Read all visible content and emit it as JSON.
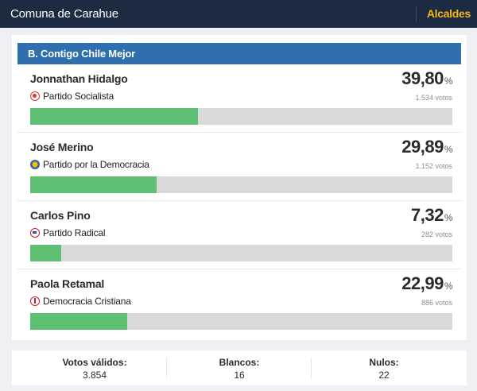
{
  "topbar": {
    "title": "Comuna de Carahue",
    "link": "Alcaldes"
  },
  "list": {
    "header": "B. Contigo Chile Mejor"
  },
  "candidates": [
    {
      "name": "Jonnathan Hidalgo",
      "party": "Partido Socialista",
      "logo": "ps-party-icon",
      "percent_int": "39,80",
      "percent_sym": "%",
      "votes": "1.534 votos",
      "share": 39.8
    },
    {
      "name": "José Merino",
      "party": "Partido por la Democracia",
      "logo": "ppd-party-icon",
      "percent_int": "29,89",
      "percent_sym": "%",
      "votes": "1.152 votos",
      "share": 29.89
    },
    {
      "name": "Carlos Pino",
      "party": "Partido Radical",
      "logo": "pr-party-icon",
      "percent_int": "7,32",
      "percent_sym": "%",
      "votes": "282 votos",
      "share": 7.32
    },
    {
      "name": "Paola Retamal",
      "party": "Democracia Cristiana",
      "logo": "dc-party-icon",
      "percent_int": "22,99",
      "percent_sym": "%",
      "votes": "886 votos",
      "share": 22.99
    }
  ],
  "summary": {
    "validos": {
      "label": "Votos válidos:",
      "value": "3.854"
    },
    "blancos": {
      "label": "Blancos:",
      "value": "16"
    },
    "nulos": {
      "label": "Nulos:",
      "value": "22"
    }
  },
  "colors": {
    "topbar": "#1c2b41",
    "header": "#2f6fae",
    "bar_fill": "#5fbf72",
    "bar_track": "#d9d9d9",
    "link": "#f5b71b"
  }
}
